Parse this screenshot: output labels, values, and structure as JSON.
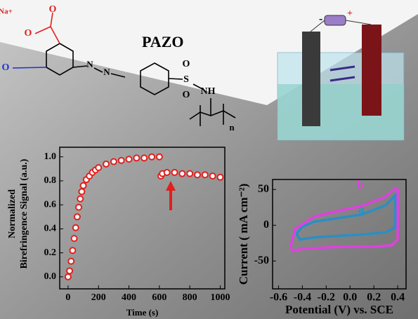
{
  "structure": {
    "title": "PAZO",
    "labels": [
      "Na+",
      "O",
      "O",
      "O",
      "N",
      "N",
      "S",
      "O",
      "O",
      "NH",
      "n"
    ]
  },
  "cell": {
    "labels": [
      "-",
      "+"
    ]
  },
  "chart_data": [
    {
      "type": "scatter",
      "ylabel": [
        "Normalized",
        "Birefringence Signal (a.u.)"
      ],
      "xlabel": "Time (s)",
      "color": "#e0201c",
      "x": [
        0,
        10,
        20,
        30,
        40,
        50,
        60,
        70,
        80,
        90,
        100,
        120,
        140,
        160,
        180,
        200,
        250,
        300,
        350,
        400,
        450,
        500,
        550,
        600,
        610,
        620,
        650,
        700,
        750,
        800,
        850,
        900,
        950,
        1000
      ],
      "values": [
        0.0,
        0.05,
        0.13,
        0.22,
        0.32,
        0.41,
        0.5,
        0.58,
        0.65,
        0.71,
        0.76,
        0.81,
        0.84,
        0.87,
        0.89,
        0.91,
        0.94,
        0.96,
        0.97,
        0.98,
        0.99,
        0.99,
        1.0,
        1.0,
        0.84,
        0.86,
        0.87,
        0.87,
        0.86,
        0.86,
        0.85,
        0.85,
        0.84,
        0.83
      ],
      "xlim": [
        -55,
        1030
      ],
      "ylim": [
        -0.1,
        1.08
      ],
      "xticks": [
        0,
        200,
        400,
        600,
        800,
        1000
      ],
      "yticks": [
        {
          "value": 0,
          "label": "0.0"
        },
        0.2,
        0.4,
        0.6,
        0.8,
        {
          "value": 1,
          "label": "1.0"
        }
      ]
    },
    {
      "type": "line",
      "ylabel": "Current ( mA cm⁻²)",
      "xlabel": "Potential (V) vs. SCE",
      "series": [
        {
          "name": "a",
          "color": "#2a8fc4",
          "x": [
            -0.45,
            -0.4,
            -0.3,
            -0.1,
            0.1,
            0.3,
            0.38,
            0.38,
            0.3,
            0.1,
            -0.1,
            -0.3,
            -0.42,
            -0.45
          ],
          "values": [
            -12,
            -2,
            5,
            10,
            15,
            28,
            42,
            -3,
            -10,
            -13,
            -15,
            -17,
            -20,
            -12
          ]
        },
        {
          "name": "b",
          "color": "#e040e0",
          "x": [
            -0.5,
            -0.46,
            -0.3,
            -0.1,
            0.1,
            0.3,
            0.38,
            0.4,
            0.4,
            0.35,
            0.2,
            0.0,
            -0.2,
            -0.4,
            -0.48,
            -0.5
          ],
          "values": [
            -30,
            -5,
            12,
            20,
            27,
            40,
            52,
            50,
            -20,
            -28,
            -30,
            -30,
            -31,
            -33,
            -36,
            -30
          ]
        }
      ],
      "xlim": [
        -0.65,
        0.47
      ],
      "ylim": [
        -89,
        64
      ],
      "xticks": [
        -0.6,
        -0.4,
        -0.2,
        {
          "value": 0,
          "label": "0.0"
        },
        0.2,
        0.4
      ],
      "yticks": [
        50,
        0,
        -50
      ]
    }
  ]
}
